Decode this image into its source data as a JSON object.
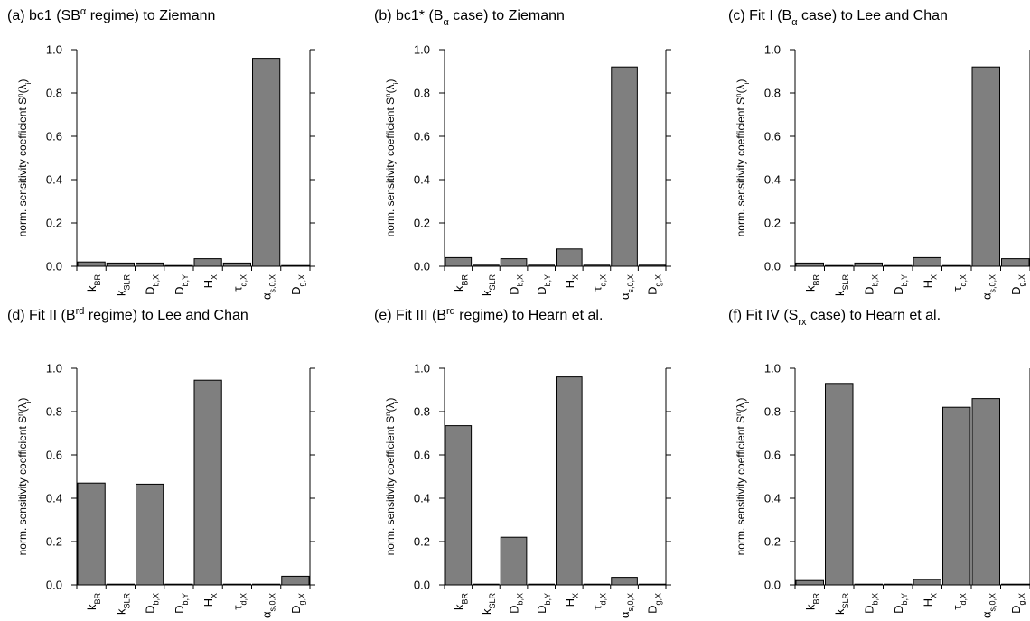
{
  "chart_data": [
    {
      "type": "bar",
      "panel": "(a)",
      "title": "bc1 (SB^α regime) to Ziemann",
      "title_parts": [
        {
          "t": "(a)  bc1 (SB"
        },
        {
          "t": "α",
          "s": "sup"
        },
        {
          "t": " regime) to Ziemann"
        }
      ],
      "ylabel": "norm. sensitivity coefficient S^n(λi)",
      "categories": [
        "k_BR",
        "k_SLR",
        "D_b,X",
        "D_b,Y",
        "H_X",
        "τ_d,X",
        "α_s,0,X",
        "D_g,X"
      ],
      "values": [
        0.02,
        0.015,
        0.015,
        0.0,
        0.035,
        0.015,
        0.96,
        0.0
      ],
      "ylim": [
        0,
        1.0
      ],
      "yticks": [
        "0.0",
        "0.2",
        "0.4",
        "0.6",
        "0.8",
        "1.0"
      ],
      "bar_color": "#7f7f7f"
    },
    {
      "type": "bar",
      "panel": "(b)",
      "title": "bc1* (B_α case) to Ziemann",
      "title_parts": [
        {
          "t": "(b)  bc1* (B"
        },
        {
          "t": "α",
          "s": "sub"
        },
        {
          "t": " case) to Ziemann"
        }
      ],
      "ylabel": "norm. sensitivity coefficient S^n(λi)",
      "categories": [
        "k_BR",
        "k_SLR",
        "D_b,X",
        "D_b,Y",
        "H_X",
        "τ_d,X",
        "α_s,0,X",
        "D_g,X"
      ],
      "values": [
        0.04,
        0.005,
        0.035,
        0.005,
        0.08,
        0.005,
        0.92,
        0.005
      ],
      "ylim": [
        0,
        1.0
      ],
      "yticks": [
        "0.0",
        "0.2",
        "0.4",
        "0.6",
        "0.8",
        "1.0"
      ],
      "bar_color": "#7f7f7f"
    },
    {
      "type": "bar",
      "panel": "(c)",
      "title": "Fit I (B_α case) to Lee and Chan",
      "title_parts": [
        {
          "t": "(c)  Fit I (B"
        },
        {
          "t": "α",
          "s": "sub"
        },
        {
          "t": " case) to Lee and Chan"
        }
      ],
      "ylabel": "norm. sensitivity coefficient S^n(λi)",
      "categories": [
        "k_BR",
        "k_SLR",
        "D_b,X",
        "D_b,Y",
        "H_X",
        "τ_d,X",
        "α_s,0,X",
        "D_g,X"
      ],
      "values": [
        0.015,
        0.0,
        0.015,
        0.0,
        0.04,
        0.0,
        0.92,
        0.035
      ],
      "ylim": [
        0,
        1.0
      ],
      "yticks": [
        "0.0",
        "0.2",
        "0.4",
        "0.6",
        "0.8",
        "1.0"
      ],
      "bar_color": "#7f7f7f"
    },
    {
      "type": "bar",
      "panel": "(d)",
      "title": "Fit II (B^rd regime) to Lee and Chan",
      "title_parts": [
        {
          "t": "(d)  Fit II (B"
        },
        {
          "t": "rd",
          "s": "sup"
        },
        {
          "t": " regime) to Lee and Chan"
        }
      ],
      "ylabel": "norm. sensitivity coefficient S^n(λi)",
      "categories": [
        "k_BR",
        "k_SLR",
        "D_b,X",
        "D_b,Y",
        "H_X",
        "τ_d,X",
        "α_s,0,X",
        "D_g,X"
      ],
      "values": [
        0.47,
        0.0,
        0.465,
        0.0,
        0.945,
        0.0,
        0.0,
        0.04
      ],
      "ylim": [
        0,
        1.0
      ],
      "yticks": [
        "0.0",
        "0.2",
        "0.4",
        "0.6",
        "0.8",
        "1.0"
      ],
      "bar_color": "#7f7f7f"
    },
    {
      "type": "bar",
      "panel": "(e)",
      "title": "Fit III (B^rd regime) to Hearn et al.",
      "title_parts": [
        {
          "t": "(e)  Fit III (B"
        },
        {
          "t": "rd",
          "s": "sup"
        },
        {
          "t": " regime) to Hearn et al."
        }
      ],
      "ylabel": "norm. sensitivity coefficient S^n(λi)",
      "categories": [
        "k_BR",
        "k_SLR",
        "D_b,X",
        "D_b,Y",
        "H_X",
        "τ_d,X",
        "α_s,0,X",
        "D_g,X"
      ],
      "values": [
        0.735,
        0.0,
        0.22,
        0.0,
        0.96,
        0.0,
        0.035,
        0.0
      ],
      "ylim": [
        0,
        1.0
      ],
      "yticks": [
        "0.0",
        "0.2",
        "0.4",
        "0.6",
        "0.8",
        "1.0"
      ],
      "bar_color": "#7f7f7f"
    },
    {
      "type": "bar",
      "panel": "(f)",
      "title": "Fit IV (S_rx case) to Hearn et al.",
      "title_parts": [
        {
          "t": "(f)  Fit IV (S"
        },
        {
          "t": "rx",
          "s": "sub"
        },
        {
          "t": " case) to Hearn et al."
        }
      ],
      "ylabel": "norm. sensitivity coefficient S^n(λi)",
      "categories": [
        "k_BR",
        "k_SLR",
        "D_b,X",
        "D_b,Y",
        "H_X",
        "τ_d,X",
        "α_s,0,X",
        "D_g,X"
      ],
      "values": [
        0.02,
        0.93,
        0.0,
        0.0,
        0.025,
        0.82,
        0.86,
        0.0
      ],
      "ylim": [
        0,
        1.0
      ],
      "yticks": [
        "0.0",
        "0.2",
        "0.4",
        "0.6",
        "0.8",
        "1.0"
      ],
      "bar_color": "#7f7f7f"
    }
  ],
  "tick_label_parts": {
    "k_BR": [
      {
        "t": "k"
      },
      {
        "t": "BR",
        "s": "sub"
      }
    ],
    "k_SLR": [
      {
        "t": "k"
      },
      {
        "t": "SLR",
        "s": "sub"
      }
    ],
    "D_b,X": [
      {
        "t": "D"
      },
      {
        "t": "b,X",
        "s": "sub"
      }
    ],
    "D_b,Y": [
      {
        "t": "D"
      },
      {
        "t": "b,Y",
        "s": "sub"
      }
    ],
    "H_X": [
      {
        "t": "H"
      },
      {
        "t": "X",
        "s": "sub"
      }
    ],
    "τ_d,X": [
      {
        "t": "τ"
      },
      {
        "t": "d,X",
        "s": "sub"
      }
    ],
    "α_s,0,X": [
      {
        "t": "α"
      },
      {
        "t": "s,0,X",
        "s": "sub"
      }
    ],
    "D_g,X": [
      {
        "t": "D"
      },
      {
        "t": "g,X",
        "s": "sub"
      }
    ]
  },
  "ylabel_parts": [
    {
      "t": "norm. sensitivity coefficient S"
    },
    {
      "t": "n",
      "s": "sup"
    },
    {
      "t": "(λ"
    },
    {
      "t": "i",
      "s": "sub"
    },
    {
      "t": ")"
    }
  ]
}
